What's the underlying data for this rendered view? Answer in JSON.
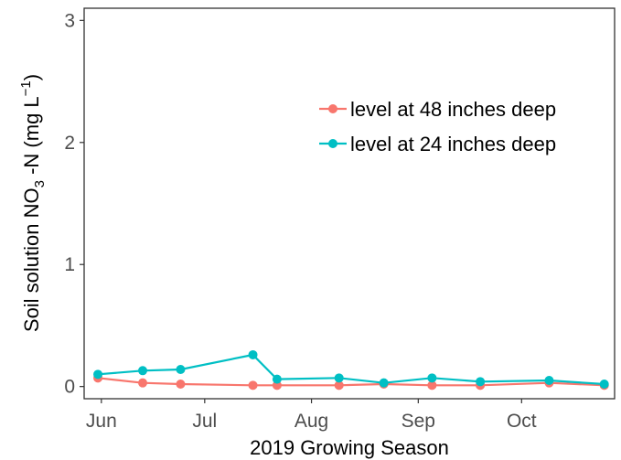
{
  "chart_data": {
    "type": "line",
    "xlabel": "2019 Growing Season",
    "ylabel": {
      "prefix": "Soil solution NO",
      "sub": "3",
      "mid": " -N (mg L",
      "sup": "−1",
      "suffix": ")"
    },
    "x_axis": {
      "type": "date",
      "range": [
        "2019-05-27",
        "2019-10-28"
      ],
      "ticks": [
        {
          "label": "Jun",
          "date": "2019-06-01"
        },
        {
          "label": "Jul",
          "date": "2019-07-01"
        },
        {
          "label": "Aug",
          "date": "2019-08-01"
        },
        {
          "label": "Sep",
          "date": "2019-09-01"
        },
        {
          "label": "Oct",
          "date": "2019-10-01"
        }
      ]
    },
    "y_axis": {
      "range": [
        -0.1,
        3.1
      ],
      "ticks": [
        0,
        1,
        2,
        3
      ]
    },
    "grid": false,
    "legend_position": "top-right",
    "series": [
      {
        "name": "level at 48 inches deep",
        "color": "#F8766D",
        "points": [
          {
            "x": "2019-05-31",
            "y": 0.07
          },
          {
            "x": "2019-06-13",
            "y": 0.03
          },
          {
            "x": "2019-06-24",
            "y": 0.02
          },
          {
            "x": "2019-07-15",
            "y": 0.01
          },
          {
            "x": "2019-07-22",
            "y": 0.01
          },
          {
            "x": "2019-08-09",
            "y": 0.01
          },
          {
            "x": "2019-08-22",
            "y": 0.02
          },
          {
            "x": "2019-09-05",
            "y": 0.01
          },
          {
            "x": "2019-09-19",
            "y": 0.01
          },
          {
            "x": "2019-10-09",
            "y": 0.03
          },
          {
            "x": "2019-10-25",
            "y": 0.01
          }
        ]
      },
      {
        "name": "level at 24 inches deep",
        "color": "#00BFC4",
        "points": [
          {
            "x": "2019-05-31",
            "y": 0.1
          },
          {
            "x": "2019-06-13",
            "y": 0.13
          },
          {
            "x": "2019-06-24",
            "y": 0.14
          },
          {
            "x": "2019-07-15",
            "y": 0.26
          },
          {
            "x": "2019-07-22",
            "y": 0.06
          },
          {
            "x": "2019-08-09",
            "y": 0.07
          },
          {
            "x": "2019-08-22",
            "y": 0.03
          },
          {
            "x": "2019-09-05",
            "y": 0.07
          },
          {
            "x": "2019-09-19",
            "y": 0.04
          },
          {
            "x": "2019-10-09",
            "y": 0.05
          },
          {
            "x": "2019-10-25",
            "y": 0.02
          }
        ]
      }
    ]
  }
}
